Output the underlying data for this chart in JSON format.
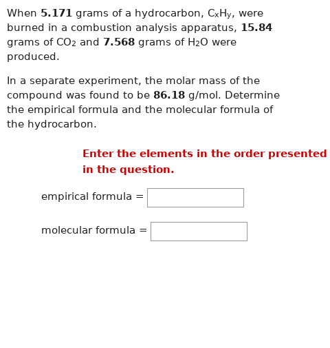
{
  "background_color": "#ffffff",
  "fig_width": 4.81,
  "fig_height": 5.05,
  "dpi": 100,
  "instruction_color": "#cc0000",
  "box_edge_color": "#aaaaaa",
  "text_color": "#000000",
  "font_size": 11.2,
  "font_size_instruction": 11.2
}
